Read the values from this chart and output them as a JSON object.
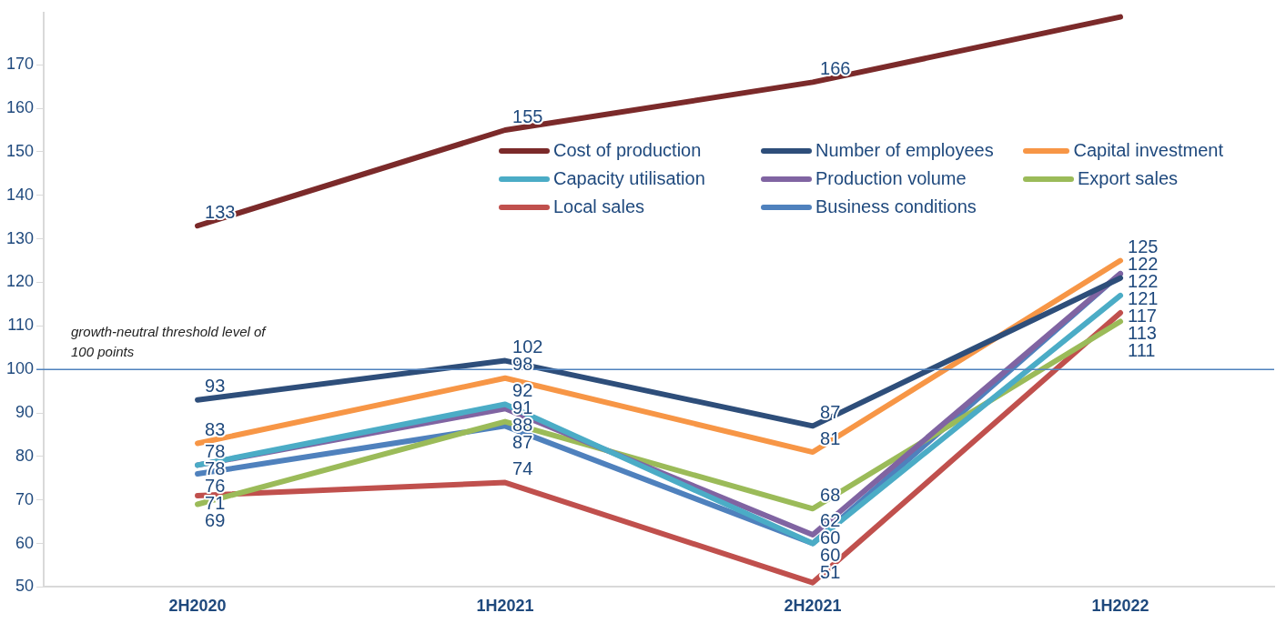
{
  "chart_data": {
    "type": "line",
    "categories": [
      "2H2020",
      "1H2021",
      "2H2021",
      "1H2022"
    ],
    "ylim": [
      50,
      182
    ],
    "yticks": [
      50,
      60,
      70,
      80,
      90,
      100,
      110,
      120,
      130,
      140,
      150,
      160,
      170
    ],
    "grid": false,
    "legend": "top",
    "marker": "none",
    "line_style": "solid",
    "ref_lines": [
      {
        "axis": "y",
        "value": 100,
        "label": "growth-neutral threshold level of 100 points",
        "color": "#4f81bd"
      }
    ],
    "series": [
      {
        "name": "Cost of production",
        "color": "#7b2a2a",
        "values": [
          133,
          155,
          166,
          181
        ],
        "value_labels": [
          "133",
          "155",
          "166",
          null
        ]
      },
      {
        "name": "Number of employees",
        "color": "#2e4e7a",
        "values": [
          93,
          102,
          87,
          121
        ],
        "value_labels": [
          "93",
          "102",
          "87",
          "121"
        ]
      },
      {
        "name": "Capital investment",
        "color": "#f79646",
        "values": [
          83,
          98,
          81,
          125
        ],
        "value_labels": [
          "83",
          "98",
          "81",
          "125"
        ]
      },
      {
        "name": "Capacity utilisation",
        "color": "#4bacc6",
        "values": [
          78,
          92,
          60,
          117
        ],
        "value_labels": [
          "78",
          "92",
          "60",
          "117"
        ]
      },
      {
        "name": "Production volume",
        "color": "#8064a2",
        "values": [
          78,
          91,
          62,
          122
        ],
        "value_labels": [
          "78",
          "91",
          "62",
          "122"
        ]
      },
      {
        "name": "Export sales",
        "color": "#9bbb59",
        "values": [
          69,
          88,
          68,
          111
        ],
        "value_labels": [
          "69",
          "88",
          "68",
          "111"
        ]
      },
      {
        "name": "Local sales",
        "color": "#c0504d",
        "values": [
          71,
          74,
          51,
          113
        ],
        "value_labels": [
          "71",
          "74",
          "51",
          "113"
        ]
      },
      {
        "name": "Business conditions",
        "color": "#4f81bd",
        "values": [
          76,
          87,
          60,
          122
        ],
        "value_labels": [
          "76",
          "87",
          "60",
          "122"
        ]
      }
    ]
  }
}
